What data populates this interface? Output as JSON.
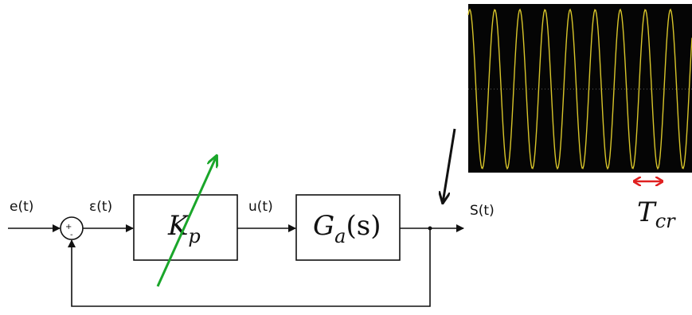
{
  "signals": {
    "input": "e(t)",
    "error": "ε(t)",
    "control": "u(t)",
    "output": "S(t)"
  },
  "summing_junction": {
    "plus": "+",
    "minus": "-"
  },
  "blocks": [
    {
      "label": "K",
      "subscript": "p"
    },
    {
      "label": "G",
      "subscript": "a",
      "suffix": "(s)"
    }
  ],
  "oscilloscope": {
    "period_label": {
      "label": "T",
      "subscript": "cr"
    }
  }
}
